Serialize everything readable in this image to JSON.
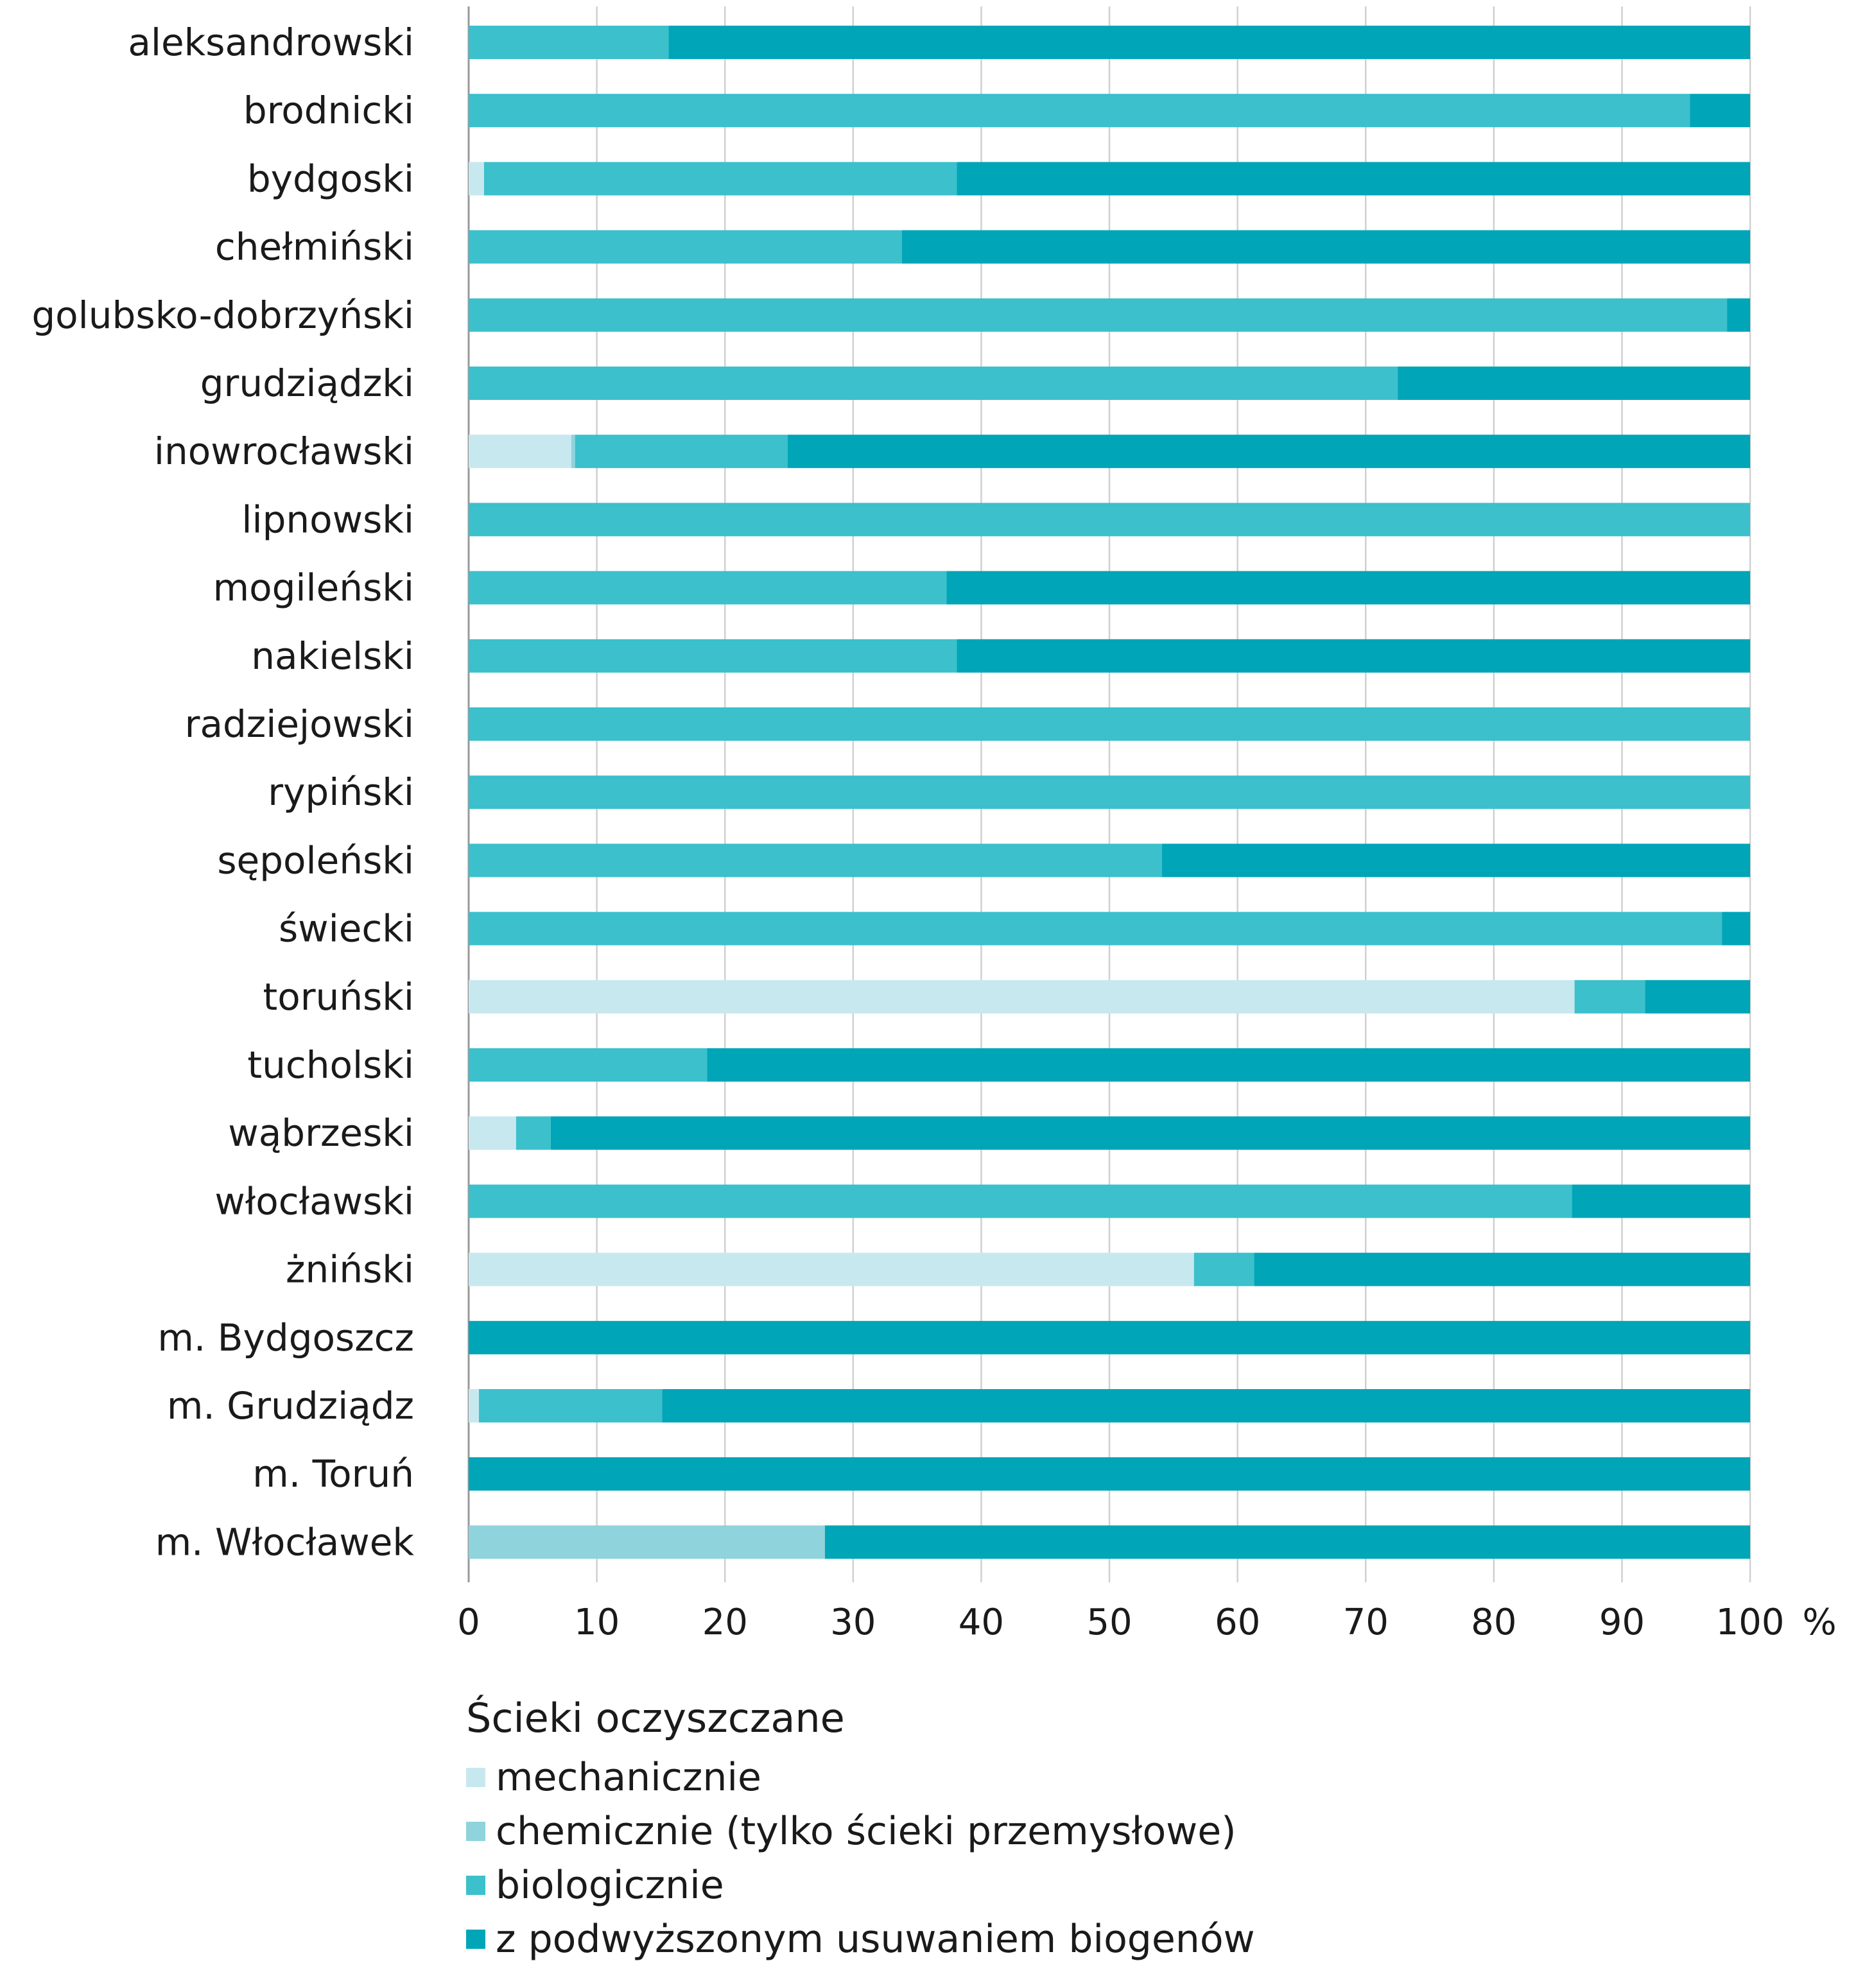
{
  "chart_data": {
    "type": "bar",
    "orientation": "horizontal",
    "stacked": true,
    "unit": "%",
    "xlim": [
      0,
      100
    ],
    "xticks": [
      0,
      10,
      20,
      30,
      40,
      50,
      60,
      70,
      80,
      90,
      100
    ],
    "grid": true,
    "legend_placement": "bottom",
    "legend_title": "Ścieki oczyszczane",
    "categories": [
      "aleksandrowski",
      "brodnicki",
      "bydgoski",
      "chełmiński",
      "golubsko-dobrzyński",
      "grudziądzki",
      "inowrocławski",
      "lipnowski",
      "mogileński",
      "nakielski",
      "radziejowski",
      "rypiński",
      "sępoleński",
      "świecki",
      "toruński",
      "tucholski",
      "wąbrzeski",
      "włocławski",
      "żniński",
      "m. Bydgoszcz",
      "m. Grudziądz",
      "m. Toruń",
      "m. Włocławek"
    ],
    "series": [
      {
        "name": "mechanicznie",
        "color": "#c8e8ef",
        "values": [
          0,
          0,
          1.2,
          0,
          0,
          0,
          8.0,
          0,
          0,
          0,
          0,
          0,
          0,
          0,
          86.3,
          0,
          3.7,
          0,
          56.6,
          0,
          0.8,
          0,
          0
        ]
      },
      {
        "name": "chemicznie (tylko ścieki przemysłowe)",
        "color": "#8fd3dd",
        "values": [
          0,
          0,
          0,
          0,
          0,
          0,
          0.3,
          0,
          0,
          0,
          0,
          0,
          0,
          0,
          0,
          0,
          0,
          0,
          0,
          0,
          0,
          0,
          27.8
        ]
      },
      {
        "name": "biologicznie",
        "color": "#3bc0cc",
        "values": [
          15.6,
          95.3,
          36.9,
          33.8,
          98.2,
          72.5,
          16.6,
          100,
          37.3,
          38.1,
          100,
          100,
          54.1,
          97.8,
          5.5,
          18.6,
          2.7,
          86.1,
          4.7,
          0,
          14.3,
          0,
          0
        ]
      },
      {
        "name": "z podwyższonym usuwaniem biogenów",
        "color": "#00a5b8",
        "values": [
          84.4,
          4.7,
          61.9,
          66.2,
          1.8,
          27.5,
          75.1,
          0,
          62.7,
          61.9,
          0,
          0,
          45.9,
          2.2,
          8.2,
          81.4,
          93.6,
          13.9,
          38.7,
          100,
          84.9,
          100,
          72.2
        ]
      }
    ]
  }
}
